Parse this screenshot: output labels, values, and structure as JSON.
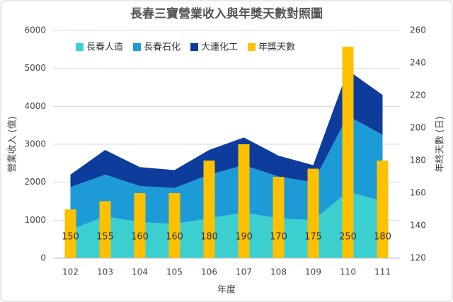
{
  "chart_data": {
    "type": "combo",
    "title": "長春三寶營業收入與年獎天數對照圖",
    "x_label": "年度",
    "y_label": "營業收入 (億)",
    "y2_label": "年終天數 (日)",
    "categories": [
      "102",
      "103",
      "104",
      "105",
      "106",
      "107",
      "108",
      "109",
      "110",
      "111"
    ],
    "series": [
      {
        "name": "長春人造",
        "type": "area",
        "color": "#3ccfcf",
        "values": [
          750,
          1100,
          950,
          900,
          1050,
          1200,
          1050,
          1000,
          1750,
          1500
        ]
      },
      {
        "name": "長春石化",
        "type": "area",
        "color": "#1d9bd7",
        "values": [
          1120,
          1100,
          950,
          950,
          1150,
          1250,
          1100,
          1000,
          2000,
          1750
        ]
      },
      {
        "name": "大連化工",
        "type": "area",
        "color": "#0d3c9c",
        "values": [
          330,
          650,
          500,
          470,
          650,
          730,
          550,
          450,
          1200,
          1050
        ]
      },
      {
        "name": "年獎天數",
        "type": "bar",
        "axis": "y2",
        "color": "#ffc000",
        "values": [
          150,
          155,
          160,
          160,
          180,
          190,
          170,
          175,
          250,
          180
        ]
      }
    ],
    "ylim": [
      0,
      6000
    ],
    "yticks": [
      0,
      1000,
      2000,
      3000,
      4000,
      5000,
      6000
    ],
    "y2lim": [
      120,
      260
    ],
    "y2ticks": [
      120,
      140,
      160,
      180,
      200,
      220,
      240,
      260
    ],
    "grid": true,
    "legend": "top"
  }
}
